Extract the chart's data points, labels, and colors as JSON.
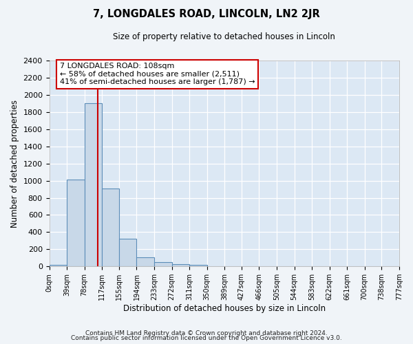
{
  "title": "7, LONGDALES ROAD, LINCOLN, LN2 2JR",
  "subtitle": "Size of property relative to detached houses in Lincoln",
  "xlabel": "Distribution of detached houses by size in Lincoln",
  "ylabel": "Number of detached properties",
  "bar_color": "#c8d8e8",
  "bar_edge_color": "#5b8db8",
  "bin_edges": [
    0,
    39,
    78,
    117,
    155,
    194,
    233,
    272,
    311,
    350,
    389,
    427,
    466,
    505,
    544,
    583,
    622,
    661,
    700,
    738,
    777
  ],
  "bar_heights": [
    20,
    1010,
    1900,
    910,
    320,
    110,
    50,
    25,
    20,
    0,
    0,
    0,
    0,
    0,
    0,
    0,
    0,
    0,
    0,
    0
  ],
  "tick_labels": [
    "0sqm",
    "39sqm",
    "78sqm",
    "117sqm",
    "155sqm",
    "194sqm",
    "233sqm",
    "272sqm",
    "311sqm",
    "350sqm",
    "389sqm",
    "427sqm",
    "466sqm",
    "505sqm",
    "544sqm",
    "583sqm",
    "622sqm",
    "661sqm",
    "700sqm",
    "738sqm",
    "777sqm"
  ],
  "vline_x": 108,
  "vline_color": "#cc0000",
  "annotation_line1": "7 LONGDALES ROAD: 108sqm",
  "annotation_line2": "← 58% of detached houses are smaller (2,511)",
  "annotation_line3": "41% of semi-detached houses are larger (1,787) →",
  "ylim": [
    0,
    2400
  ],
  "yticks": [
    0,
    200,
    400,
    600,
    800,
    1000,
    1200,
    1400,
    1600,
    1800,
    2000,
    2200,
    2400
  ],
  "footer1": "Contains HM Land Registry data © Crown copyright and database right 2024.",
  "footer2": "Contains public sector information licensed under the Open Government Licence v3.0.",
  "bg_color": "#f0f4f8",
  "plot_bg_color": "#dce8f4",
  "grid_color": "#ffffff"
}
